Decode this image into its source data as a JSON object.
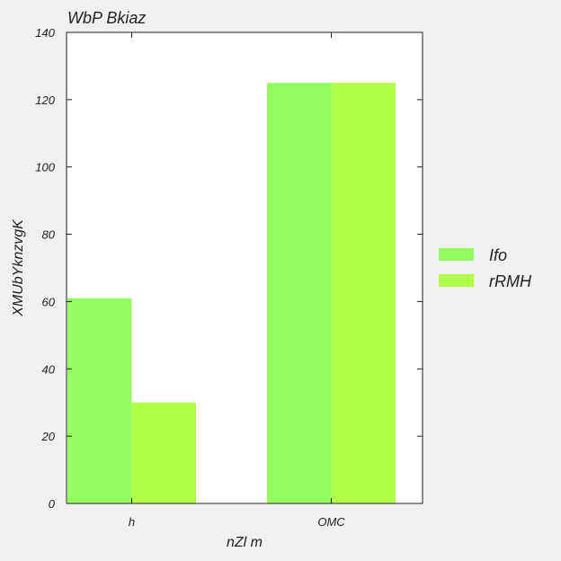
{
  "chart_data": {
    "type": "bar",
    "title": "WbP Bkiaz",
    "xlabel": "nZl m",
    "ylabel": "XMUbYknzvgK",
    "categories": [
      "h",
      "OMC"
    ],
    "series": [
      {
        "name": "Ifo",
        "values": [
          61,
          125
        ],
        "color": "#94ff61"
      },
      {
        "name": "rRMH",
        "values": [
          30,
          125
        ],
        "color": "#b0ff49"
      }
    ],
    "ylim": [
      0,
      140
    ],
    "yticks": [
      0,
      20,
      40,
      60,
      80,
      100,
      120,
      140
    ],
    "grid": false,
    "legend_position": "right"
  }
}
